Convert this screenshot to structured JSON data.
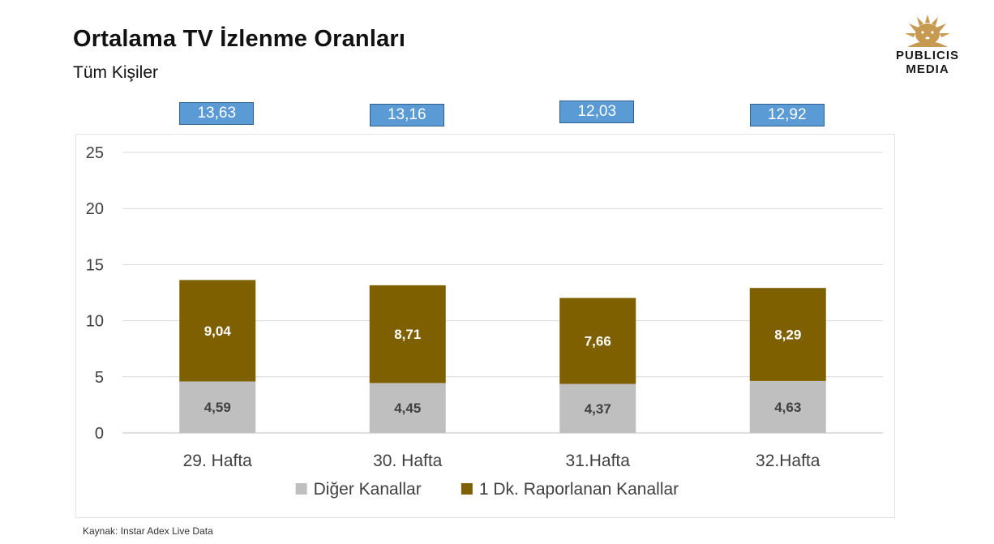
{
  "header": {
    "title": "Ortalama TV İzlenme Oranları",
    "subtitle": "Tüm Kişiler"
  },
  "logo": {
    "line1": "PUBLICIS",
    "line2": "MEDIA",
    "color": "#c79a52"
  },
  "source": "Kaynak: Instar  Adex Live Data",
  "chart_data": {
    "type": "bar",
    "stacked": true,
    "categories": [
      "29. Hafta",
      "30. Hafta",
      "31.Hafta",
      "32.Hafta"
    ],
    "series": [
      {
        "name": "Diğer Kanallar",
        "values": [
          4.59,
          4.45,
          4.37,
          4.63
        ],
        "labels": [
          "4,59",
          "4,45",
          "4,37",
          "4,63"
        ],
        "color": "#bfbfbf",
        "label_color": "#404040"
      },
      {
        "name": "1 Dk. Raporlanan Kanallar",
        "values": [
          9.04,
          8.71,
          7.66,
          8.29
        ],
        "labels": [
          "9,04",
          "8,71",
          "7,66",
          "8,29"
        ],
        "color": "#7f6000",
        "label_color": "#ffffff"
      }
    ],
    "totals": [
      "13,63",
      "13,16",
      "12,03",
      "12,92"
    ],
    "totals_color": "#5b9bd5",
    "ylim": [
      0,
      25
    ],
    "yticks": [
      0,
      5,
      10,
      15,
      20,
      25
    ],
    "grid": true,
    "legend": "bottom",
    "title": "",
    "xlabel": "",
    "ylabel": ""
  }
}
